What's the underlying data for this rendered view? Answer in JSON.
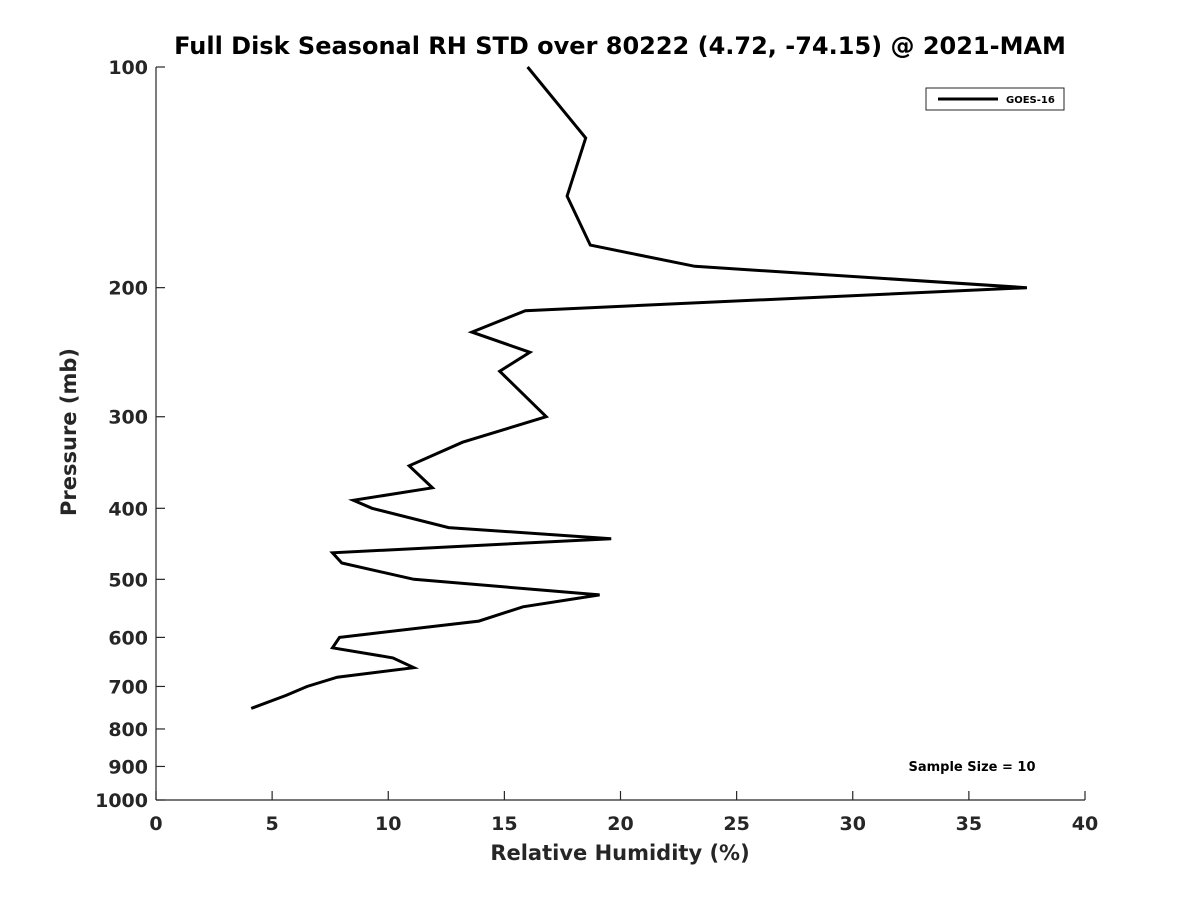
{
  "chart_data": {
    "type": "line",
    "title": "Full Disk Seasonal RH STD over 80222 (4.72, -74.15) @ 2021-MAM",
    "xlabel": "Relative Humidity (%)",
    "ylabel": "Pressure (mb)",
    "xlim": [
      0,
      40
    ],
    "ylim": [
      100,
      1000
    ],
    "y_scale": "log",
    "y_reversed": true,
    "x_ticks": [
      0,
      5,
      10,
      15,
      20,
      25,
      30,
      35,
      40
    ],
    "y_ticks": [
      100,
      200,
      300,
      400,
      500,
      600,
      700,
      800,
      900,
      1000
    ],
    "grid": false,
    "legend_position": "top-right",
    "series": [
      {
        "name": "GOES-16",
        "color": "#000000",
        "points": [
          {
            "x": 16.0,
            "y": 100
          },
          {
            "x": 18.5,
            "y": 125
          },
          {
            "x": 17.7,
            "y": 150
          },
          {
            "x": 18.7,
            "y": 175
          },
          {
            "x": 23.2,
            "y": 187
          },
          {
            "x": 37.5,
            "y": 200
          },
          {
            "x": 15.9,
            "y": 215
          },
          {
            "x": 13.6,
            "y": 230
          },
          {
            "x": 16.1,
            "y": 245
          },
          {
            "x": 14.8,
            "y": 260
          },
          {
            "x": 16.8,
            "y": 300
          },
          {
            "x": 13.2,
            "y": 325
          },
          {
            "x": 10.9,
            "y": 350
          },
          {
            "x": 11.9,
            "y": 375
          },
          {
            "x": 8.5,
            "y": 390
          },
          {
            "x": 9.3,
            "y": 400
          },
          {
            "x": 12.6,
            "y": 425
          },
          {
            "x": 19.6,
            "y": 440
          },
          {
            "x": 7.6,
            "y": 460
          },
          {
            "x": 8.0,
            "y": 475
          },
          {
            "x": 11.1,
            "y": 500
          },
          {
            "x": 19.1,
            "y": 525
          },
          {
            "x": 15.8,
            "y": 545
          },
          {
            "x": 13.9,
            "y": 570
          },
          {
            "x": 7.9,
            "y": 600
          },
          {
            "x": 7.6,
            "y": 620
          },
          {
            "x": 10.2,
            "y": 640
          },
          {
            "x": 11.1,
            "y": 660
          },
          {
            "x": 7.8,
            "y": 680
          },
          {
            "x": 6.5,
            "y": 700
          },
          {
            "x": 5.6,
            "y": 720
          },
          {
            "x": 4.1,
            "y": 750
          }
        ]
      }
    ],
    "annotation": "Sample Size = 10"
  }
}
